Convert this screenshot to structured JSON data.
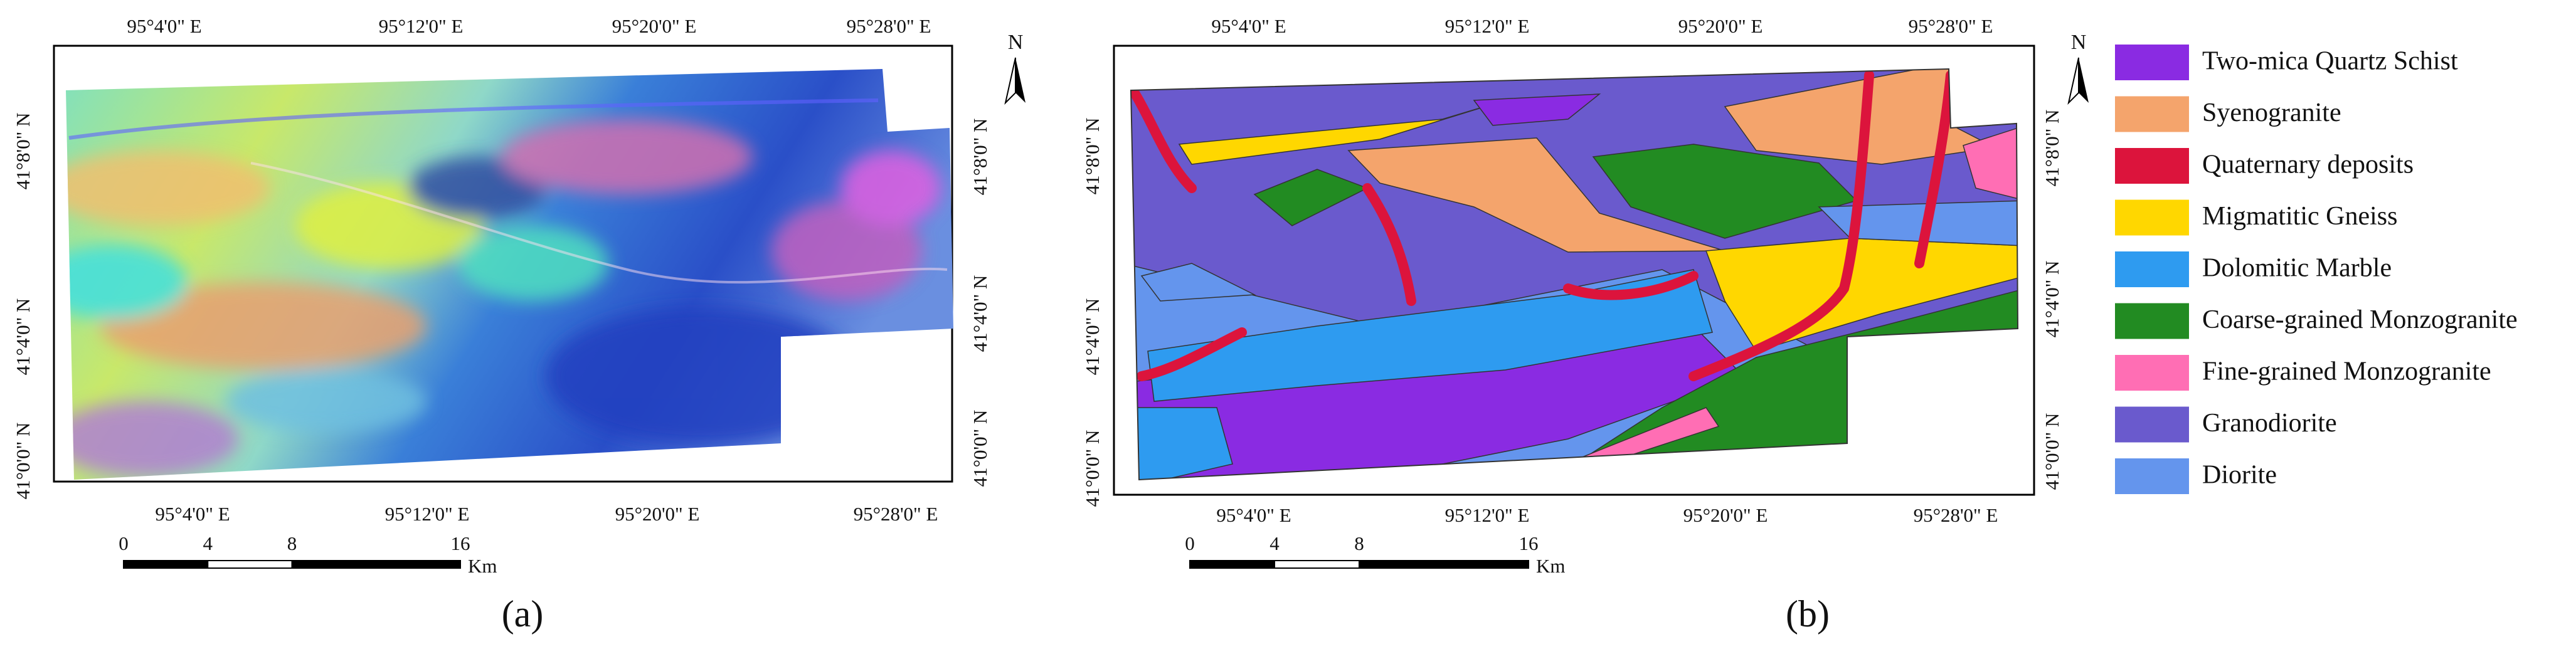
{
  "panels": [
    {
      "label": "(a)",
      "top_labels": [
        "95°4'0\" E",
        "95°12'0\" E",
        "95°20'0\" E",
        "95°28'0\" E"
      ],
      "bottom_labels": [
        "95°4'0\" E",
        "95°12'0\" E",
        "95°20'0\" E",
        "95°28'0\" E"
      ],
      "left_labels": [
        "41°8'0\" N",
        "41°4'0\" N",
        "41°0'0\" N"
      ],
      "right_labels": [
        "41°8'0\" N",
        "41°4'0\" N",
        "41°0'0\" N"
      ],
      "north": "N",
      "scale_labels": [
        0,
        4,
        8,
        16
      ],
      "scale_unit": "Km"
    },
    {
      "label": "(b)",
      "top_labels": [
        "95°4'0\" E",
        "95°12'0\" E",
        "95°20'0\" E",
        "95°28'0\" E"
      ],
      "bottom_labels": [
        "95°4'0\" E",
        "95°12'0\" E",
        "95°20'0\" E",
        "95°28'0\" E"
      ],
      "left_labels": [
        "41°8'0\" N",
        "41°4'0\" N",
        "41°0'0\" N"
      ],
      "right_labels": [
        "41°8'0\" N",
        "41°4'0\" N",
        "41°0'0\" N"
      ],
      "north": "N",
      "scale_labels": [
        0,
        4,
        8,
        16
      ],
      "scale_unit": "Km"
    }
  ],
  "legend": [
    {
      "label": "Two-mica Quartz Schist",
      "color": "#8a2be2"
    },
    {
      "label": "Syenogranite",
      "color": "#f4a46c"
    },
    {
      "label": "Quaternary deposits",
      "color": "#dc143c"
    },
    {
      "label": "Migmatitic Gneiss",
      "color": "#ffd700"
    },
    {
      "label": "Dolomitic Marble",
      "color": "#2e9bf0"
    },
    {
      "label": "Coarse-grained Monzogranite",
      "color": "#228b22"
    },
    {
      "label": "Fine-grained Monzogranite",
      "color": "#ff6eb4"
    },
    {
      "label": "Granodiorite",
      "color": "#6a5acd"
    },
    {
      "label": "Diorite",
      "color": "#6495ed"
    }
  ]
}
